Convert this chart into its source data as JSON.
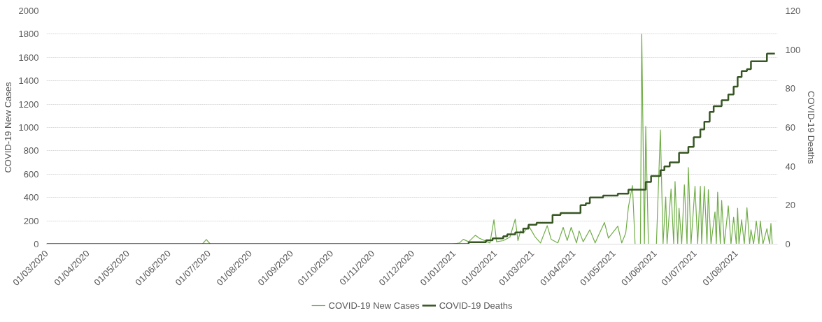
{
  "chart_data": {
    "type": "line",
    "ylabel": "COVID-19 New Cases",
    "y2label": "COVID-19 Deaths",
    "xlim": [
      "2020-03-01",
      "2021-09-01"
    ],
    "xticks": [
      {
        "value": "2020-03-01",
        "label": "01/03/2020"
      },
      {
        "value": "2020-04-01",
        "label": "01/04/2020"
      },
      {
        "value": "2020-05-01",
        "label": "01/05/2020"
      },
      {
        "value": "2020-06-01",
        "label": "01/06/2020"
      },
      {
        "value": "2020-07-01",
        "label": "01/07/2020"
      },
      {
        "value": "2020-08-01",
        "label": "01/08/2020"
      },
      {
        "value": "2020-09-01",
        "label": "01/09/2020"
      },
      {
        "value": "2020-10-01",
        "label": "01/10/2020"
      },
      {
        "value": "2020-11-01",
        "label": "01/11/2020"
      },
      {
        "value": "2020-12-01",
        "label": "01/12/2020"
      },
      {
        "value": "2021-01-01",
        "label": "01/01/2021"
      },
      {
        "value": "2021-02-01",
        "label": "01/02/2021"
      },
      {
        "value": "2021-03-01",
        "label": "01/03/2021"
      },
      {
        "value": "2021-04-01",
        "label": "01/04/2021"
      },
      {
        "value": "2021-05-01",
        "label": "01/05/2021"
      },
      {
        "value": "2021-06-01",
        "label": "01/06/2021"
      },
      {
        "value": "2021-07-01",
        "label": "01/07/2021"
      },
      {
        "value": "2021-08-01",
        "label": "01/08/2021"
      }
    ],
    "ylim": [
      0,
      2000
    ],
    "yticks": [
      0,
      200,
      400,
      600,
      800,
      1000,
      1200,
      1400,
      1600,
      1800,
      2000
    ],
    "y2lim": [
      0,
      120
    ],
    "y2ticks": [
      0,
      20,
      40,
      60,
      80,
      100,
      120
    ],
    "grid": "y",
    "legend": "bottom",
    "marker": "none",
    "series": [
      {
        "name": "COVID-19 New Cases",
        "color": "#70ad47",
        "x": [
          "2020-03-01",
          "2020-06-26",
          "2020-06-29",
          "2020-07-02",
          "2020-12-31",
          "2021-01-05",
          "2021-01-08",
          "2021-01-12",
          "2021-01-17",
          "2021-01-20",
          "2021-01-28",
          "2021-01-31",
          "2021-02-02",
          "2021-02-07",
          "2021-02-12",
          "2021-02-16",
          "2021-02-18",
          "2021-02-20",
          "2021-02-22",
          "2021-02-26",
          "2021-03-03",
          "2021-03-07",
          "2021-03-12",
          "2021-03-15",
          "2021-03-20",
          "2021-03-24",
          "2021-03-27",
          "2021-03-30",
          "2021-04-03",
          "2021-04-05",
          "2021-04-08",
          "2021-04-13",
          "2021-04-17",
          "2021-04-19",
          "2021-04-24",
          "2021-04-27",
          "2021-05-04",
          "2021-05-07",
          "2021-05-10",
          "2021-05-12",
          "2021-05-15",
          "2021-05-17",
          "2021-05-21",
          "2021-05-22",
          "2021-05-24",
          "2021-05-25",
          "2021-05-27",
          "2021-06-02",
          "2021-06-05",
          "2021-06-07",
          "2021-06-09",
          "2021-06-10",
          "2021-06-13",
          "2021-06-15",
          "2021-06-16",
          "2021-06-18",
          "2021-06-19",
          "2021-06-21",
          "2021-06-23",
          "2021-06-25",
          "2021-06-26",
          "2021-06-28",
          "2021-07-01",
          "2021-07-03",
          "2021-07-05",
          "2021-07-06",
          "2021-07-08",
          "2021-07-10",
          "2021-07-11",
          "2021-07-13",
          "2021-07-16",
          "2021-07-17",
          "2021-07-18",
          "2021-07-20",
          "2021-07-21",
          "2021-07-23",
          "2021-07-26",
          "2021-07-28",
          "2021-07-30",
          "2021-08-01",
          "2021-08-02",
          "2021-08-03",
          "2021-08-05",
          "2021-08-07",
          "2021-08-09",
          "2021-08-11",
          "2021-08-12",
          "2021-08-14",
          "2021-08-16",
          "2021-08-18",
          "2021-08-19",
          "2021-08-21",
          "2021-08-24",
          "2021-08-26",
          "2021-08-27",
          "2021-08-28"
        ],
        "values": [
          0,
          0,
          40,
          0,
          0,
          10,
          41,
          20,
          76,
          51,
          10,
          209,
          20,
          30,
          60,
          215,
          30,
          113,
          92,
          158,
          61,
          10,
          158,
          41,
          10,
          144,
          31,
          144,
          10,
          113,
          20,
          123,
          10,
          61,
          185,
          51,
          154,
          10,
          96,
          318,
          503,
          0,
          0,
          1800,
          0,
          1010,
          0,
          0,
          978,
          0,
          404,
          0,
          472,
          0,
          537,
          0,
          308,
          0,
          509,
          0,
          656,
          0,
          496,
          0,
          496,
          0,
          496,
          0,
          466,
          0,
          277,
          0,
          445,
          0,
          375,
          0,
          328,
          0,
          230,
          0,
          308,
          0,
          209,
          0,
          312,
          0,
          123,
          0,
          199,
          0,
          199,
          0,
          133,
          0,
          178,
          0
        ]
      },
      {
        "name": "COVID-19 Deaths",
        "color": "#375623",
        "type": "step",
        "axis": "y2",
        "x": [
          "2020-03-01",
          "2021-01-12",
          "2021-01-25",
          "2021-01-30",
          "2021-02-07",
          "2021-02-10",
          "2021-02-16",
          "2021-02-22",
          "2021-02-26",
          "2021-03-04",
          "2021-03-16",
          "2021-03-22",
          "2021-04-06",
          "2021-04-10",
          "2021-04-13",
          "2021-04-23",
          "2021-05-04",
          "2021-05-12",
          "2021-05-25",
          "2021-05-29",
          "2021-06-05",
          "2021-06-08",
          "2021-06-12",
          "2021-06-19",
          "2021-06-26",
          "2021-06-30",
          "2021-07-05",
          "2021-07-08",
          "2021-07-12",
          "2021-07-15",
          "2021-07-21",
          "2021-07-26",
          "2021-07-30",
          "2021-08-02",
          "2021-08-05",
          "2021-08-09",
          "2021-08-12",
          "2021-08-24",
          "2021-08-30"
        ],
        "values": [
          0,
          1,
          2,
          3,
          4,
          5,
          6,
          8,
          10,
          11,
          15,
          16,
          20,
          21,
          24,
          25,
          26,
          28,
          32,
          35,
          38,
          40,
          42,
          47,
          50,
          55,
          59,
          63,
          68,
          71,
          74,
          77,
          81,
          86,
          89,
          90,
          94,
          98,
          98
        ]
      }
    ]
  }
}
